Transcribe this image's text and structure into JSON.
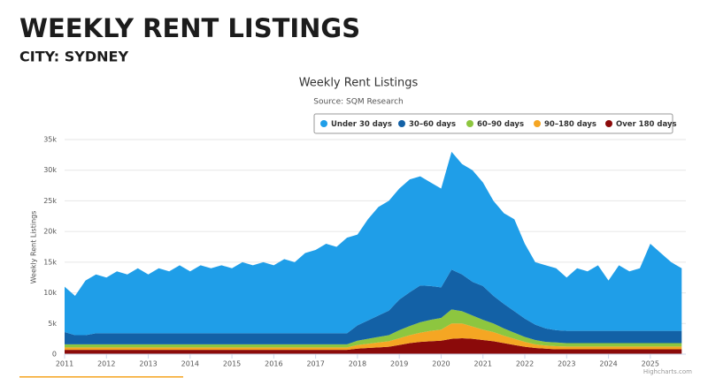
{
  "header": {
    "title": "WEEKLY RENT LISTINGS",
    "subtitle": "CITY: SYDNEY"
  },
  "chart_data": {
    "type": "area",
    "stacked": true,
    "title": "Weekly Rent Listings",
    "subtitle": "Source: SQM Research",
    "y_label": "Weekly Rent Listings",
    "credits": "Highcharts.com",
    "x": [
      2011,
      2011.25,
      2011.5,
      2011.75,
      2012,
      2012.25,
      2012.5,
      2012.75,
      2013,
      2013.25,
      2013.5,
      2013.75,
      2014,
      2014.25,
      2014.5,
      2014.75,
      2015,
      2015.25,
      2015.5,
      2015.75,
      2016,
      2016.25,
      2016.5,
      2016.75,
      2017,
      2017.25,
      2017.5,
      2017.75,
      2018,
      2018.25,
      2018.5,
      2018.75,
      2019,
      2019.25,
      2019.5,
      2019.75,
      2020,
      2020.25,
      2020.5,
      2020.75,
      2021,
      2021.25,
      2021.5,
      2021.75,
      2022,
      2022.25,
      2022.5,
      2022.75,
      2023,
      2023.25,
      2023.5,
      2023.75,
      2024,
      2024.25,
      2024.5,
      2024.75,
      2025,
      2025.25,
      2025.5,
      2025.75
    ],
    "xlim": [
      2011,
      2025.85
    ],
    "xticks": [
      2011,
      2012,
      2013,
      2014,
      2015,
      2016,
      2017,
      2018,
      2019,
      2020,
      2021,
      2022,
      2023,
      2024,
      2025
    ],
    "ylim": [
      0,
      35000
    ],
    "yticks": [
      0,
      {
        "value": 5000,
        "label": "5k"
      },
      {
        "value": 10000,
        "label": "10k"
      },
      {
        "value": 15000,
        "label": "15k"
      },
      {
        "value": 20000,
        "label": "20k"
      },
      {
        "value": 25000,
        "label": "25k"
      },
      {
        "value": 30000,
        "label": "30k"
      },
      {
        "value": 35000,
        "label": "35k"
      }
    ],
    "grid": true,
    "series": [
      {
        "name": "Under 30 days",
        "color": "#1f9ee8",
        "values": [
          7400,
          6400,
          8900,
          9600,
          9100,
          10100,
          9600,
          10600,
          9600,
          10600,
          10100,
          11100,
          10100,
          11100,
          10600,
          11100,
          10600,
          11600,
          11100,
          11600,
          11100,
          12100,
          11600,
          13100,
          13600,
          14600,
          14100,
          15600,
          14800,
          16500,
          17700,
          17900,
          18100,
          18400,
          17800,
          16900,
          16100,
          19200,
          18000,
          18200,
          16900,
          15500,
          14800,
          15000,
          12200,
          10200,
          10300,
          10100,
          8700,
          10200,
          9700,
          10700,
          8200,
          10700,
          9700,
          10200,
          14200,
          12700,
          11200,
          10200
        ]
      },
      {
        "name": "30–60 days",
        "color": "#1361a6",
        "values": [
          2000,
          1500,
          1500,
          1800,
          1800,
          1800,
          1800,
          1800,
          1800,
          1800,
          1800,
          1800,
          1800,
          1800,
          1800,
          1800,
          1800,
          1800,
          1800,
          1800,
          1800,
          1800,
          1800,
          1800,
          1800,
          1800,
          1800,
          1800,
          2500,
          3000,
          3500,
          4000,
          5000,
          5500,
          6000,
          5500,
          5000,
          6500,
          6000,
          5500,
          5500,
          4500,
          4000,
          3500,
          3000,
          2500,
          2200,
          2000,
          2000,
          2000,
          2000,
          2000,
          2000,
          2000,
          2000,
          2000,
          2000,
          2000,
          2000,
          2000
        ]
      },
      {
        "name": "60–90 days",
        "color": "#8dc63f",
        "values": [
          500,
          500,
          500,
          500,
          500,
          500,
          500,
          500,
          500,
          500,
          500,
          500,
          500,
          500,
          500,
          500,
          500,
          500,
          500,
          500,
          500,
          500,
          500,
          500,
          500,
          500,
          500,
          500,
          700,
          800,
          900,
          1000,
          1300,
          1500,
          1700,
          1800,
          1900,
          2300,
          2000,
          1800,
          1600,
          1400,
          1200,
          1000,
          800,
          700,
          600,
          600,
          550,
          550,
          550,
          550,
          550,
          550,
          550,
          550,
          550,
          550,
          550,
          550
        ]
      },
      {
        "name": "90–180 days",
        "color": "#f5a623",
        "values": [
          400,
          400,
          400,
          400,
          400,
          400,
          400,
          400,
          400,
          400,
          400,
          400,
          400,
          400,
          400,
          400,
          400,
          400,
          400,
          400,
          400,
          400,
          400,
          400,
          400,
          400,
          400,
          400,
          600,
          700,
          800,
          900,
          1100,
          1300,
          1500,
          1700,
          1800,
          2500,
          2400,
          2000,
          1700,
          1500,
          1200,
          1000,
          800,
          600,
          500,
          500,
          450,
          450,
          450,
          450,
          450,
          450,
          450,
          450,
          450,
          450,
          450,
          450
        ]
      },
      {
        "name": "Over 180 days",
        "color": "#8b0a0a",
        "values": [
          700,
          700,
          700,
          700,
          700,
          700,
          700,
          700,
          700,
          700,
          700,
          700,
          700,
          700,
          700,
          700,
          700,
          700,
          700,
          700,
          700,
          700,
          700,
          700,
          700,
          700,
          700,
          700,
          900,
          1000,
          1100,
          1200,
          1500,
          1800,
          2000,
          2100,
          2200,
          2500,
          2600,
          2500,
          2300,
          2100,
          1800,
          1500,
          1200,
          1000,
          900,
          800,
          800,
          800,
          800,
          800,
          800,
          800,
          800,
          800,
          800,
          800,
          800,
          800
        ]
      }
    ]
  }
}
